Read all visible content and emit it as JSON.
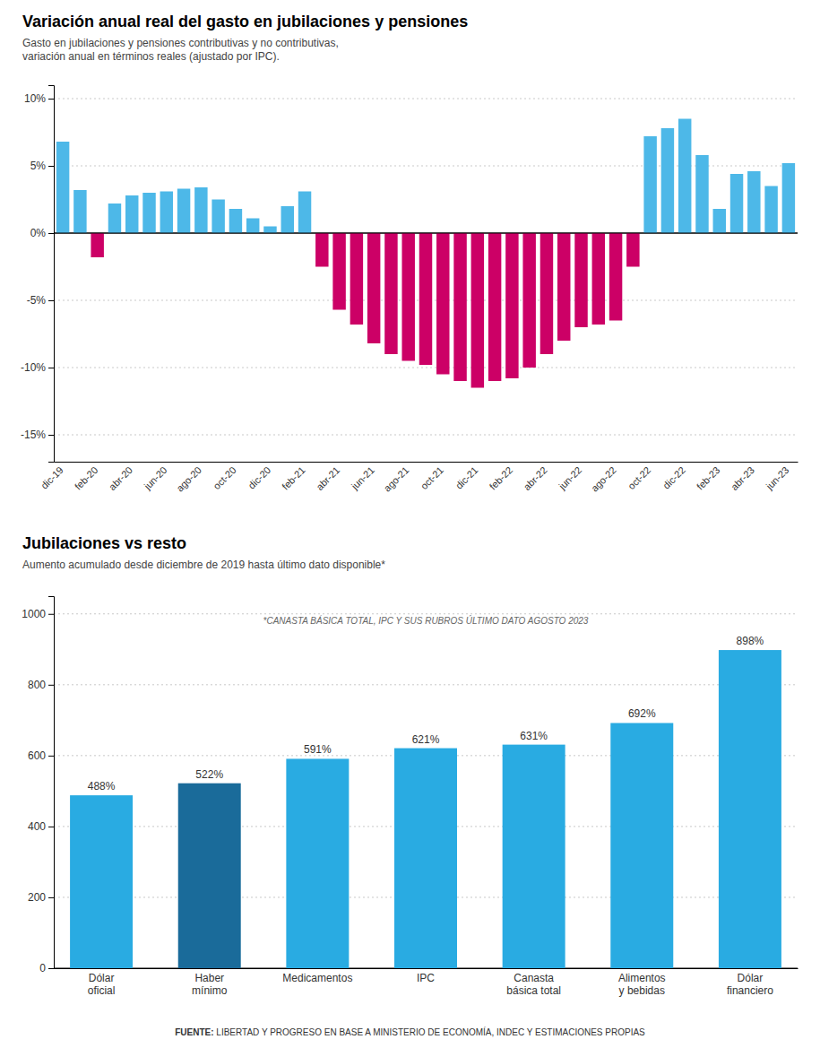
{
  "chart_data": [
    {
      "type": "bar",
      "title": "Variación anual real del gasto en jubilaciones y pensiones",
      "subtitle": [
        "Gasto en jubilaciones y pensiones contributivas y no contributivas,",
        "variación anual en términos reales (ajustado por IPC)."
      ],
      "categories": [
        "dic-19",
        null,
        "feb-20",
        null,
        "abr-20",
        null,
        "jun-20",
        null,
        "ago-20",
        null,
        "oct-20",
        null,
        "dic-20",
        null,
        "feb-21",
        null,
        "abr-21",
        null,
        "jun-21",
        null,
        "ago-21",
        null,
        "oct-21",
        null,
        "dic-21",
        null,
        "feb-22",
        null,
        "abr-22",
        null,
        "jun-22",
        null,
        "ago-22",
        null,
        "oct-22",
        null,
        "dic-22",
        null,
        "feb-23",
        null,
        "abr-23",
        null,
        "jun-23"
      ],
      "values": [
        6.8,
        3.2,
        -1.8,
        2.2,
        2.8,
        3.0,
        3.1,
        3.3,
        3.4,
        2.5,
        1.8,
        1.1,
        0.5,
        2.0,
        3.1,
        -2.5,
        -5.7,
        -6.8,
        -8.2,
        -9.0,
        -9.5,
        -9.8,
        -10.5,
        -11.0,
        -11.5,
        -11.0,
        -10.8,
        -10.0,
        -9.0,
        -8.0,
        -7.0,
        -6.8,
        -6.5,
        -2.5,
        7.2,
        7.8,
        8.5,
        5.8,
        1.8,
        4.4,
        4.6,
        3.5,
        5.2
      ],
      "colors": [
        "#4db8e8",
        "#4db8e8",
        "#cc0066",
        "#4db8e8",
        "#4db8e8",
        "#4db8e8",
        "#4db8e8",
        "#4db8e8",
        "#4db8e8",
        "#4db8e8",
        "#4db8e8",
        "#4db8e8",
        "#4db8e8",
        "#4db8e8",
        "#4db8e8",
        "#cc0066",
        "#cc0066",
        "#cc0066",
        "#cc0066",
        "#cc0066",
        "#cc0066",
        "#cc0066",
        "#cc0066",
        "#cc0066",
        "#cc0066",
        "#cc0066",
        "#cc0066",
        "#cc0066",
        "#cc0066",
        "#cc0066",
        "#cc0066",
        "#cc0066",
        "#cc0066",
        "#cc0066",
        "#4db8e8",
        "#4db8e8",
        "#4db8e8",
        "#4db8e8",
        "#4db8e8",
        "#4db8e8",
        "#4db8e8",
        "#4db8e8",
        "#4db8e8"
      ],
      "ylim": [
        -17,
        11
      ],
      "yticks": [
        {
          "value": -15,
          "label": "-15%"
        },
        {
          "value": -10,
          "label": "-10%"
        },
        {
          "value": -5,
          "label": "-5%"
        },
        {
          "value": 0,
          "label": "0%"
        },
        {
          "value": 5,
          "label": "5%"
        },
        {
          "value": 10,
          "label": "10%"
        }
      ],
      "grid": true
    },
    {
      "type": "bar",
      "title": "Jubilaciones vs resto",
      "subtitle": "Aumento acumulado desde diciembre de 2019 hasta último dato disponible*",
      "annotations": [
        "*CANASTA BÁSICA TOTAL, IPC Y SUS RUBROS ÚLTIMO DATO AGOSTO 2023"
      ],
      "categories": [
        "Dólar\noficial",
        "Haber\nmínimo",
        "Medicamentos",
        "IPC",
        "Canasta\nbásica total",
        "Alimentos\ny bebidas",
        "Dólar\nfinanciero"
      ],
      "values": [
        488,
        522,
        591,
        621,
        631,
        692,
        898
      ],
      "value_labels": [
        "488%",
        "522%",
        "591%",
        "621%",
        "631%",
        "692%",
        "898%"
      ],
      "data_labels": true,
      "colors": [
        "#29abe2",
        "#1a6b9a",
        "#29abe2",
        "#29abe2",
        "#29abe2",
        "#29abe2",
        "#29abe2"
      ],
      "ylim": [
        0,
        1050
      ],
      "yticks": [
        0,
        200,
        400,
        600,
        800,
        1000
      ],
      "grid": true
    }
  ],
  "footer": [
    "FUENTE:",
    " LIBERTAD Y PROGRESO EN BASE A MINISTERIO DE ECONOMÍA, INDEC Y ESTIMACIONES PROPIAS"
  ]
}
